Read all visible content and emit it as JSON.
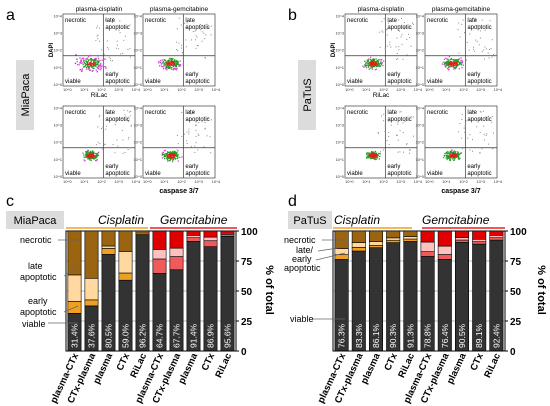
{
  "panel_letters": [
    "a",
    "b",
    "c",
    "d"
  ],
  "flow": {
    "top_headers": [
      "plasma-cisplatin",
      "plasma-gemcitabine"
    ],
    "quadrants": [
      "necrotic",
      "late apoptotic",
      "early apoptotic",
      "viable"
    ],
    "y_axis_label": "DAPI",
    "x_tick_label": "RiLac",
    "x_axis_label": "caspase 3/7",
    "row_labels_left": [
      "MiaPaca"
    ],
    "row_labels_right": [
      "PaTuS"
    ],
    "tick_labels": [
      "10^0",
      "10^1",
      "10^2",
      "10^3",
      "10^4"
    ]
  },
  "chart_data": [
    {
      "type": "bar",
      "panel": "c",
      "cell_line": "MiaPaca",
      "groups": [
        {
          "name": "Cisplatin",
          "color": "#f0a020"
        },
        {
          "name": "Gemcitabine",
          "color": "#e82020"
        }
      ],
      "categories": [
        "plasma-CTx",
        "CTx-plasma",
        "plasma",
        "CTx",
        "RiLac",
        "plasma-CTx",
        "CTx-plasma",
        "plasma",
        "CTx",
        "RiLac"
      ],
      "series": [
        {
          "name": "viable",
          "values": [
            31.4,
            37.6,
            80.5,
            59.0,
            96.2,
            64.7,
            67.7,
            91.4,
            86.9,
            95.6
          ]
        },
        {
          "name": "early apoptotic",
          "values": [
            10,
            5,
            5,
            6,
            1,
            12,
            11,
            3,
            5,
            1.5
          ]
        },
        {
          "name": "late apoptotic",
          "values": [
            22,
            18,
            2,
            18,
            1,
            8,
            7,
            2,
            3,
            1
          ]
        },
        {
          "name": "necrotic",
          "values": [
            36.6,
            39.4,
            12.5,
            17,
            1.8,
            15.3,
            14.3,
            3.6,
            5.1,
            1.9
          ]
        }
      ],
      "bar_labels": [
        "31.4%",
        "37.6%",
        "80.5%",
        "59.0%",
        "96.2%",
        "64.7%",
        "67.7%",
        "91.4%",
        "86.9%",
        "95.6%"
      ],
      "ylabel": "% of total",
      "yticks": [
        "0",
        "25",
        "50",
        "75",
        "100"
      ],
      "ylim": [
        0,
        100
      ],
      "stage_labels": [
        "necrotic",
        "late apoptotic",
        "early apoptotic",
        "viable"
      ]
    },
    {
      "type": "bar",
      "panel": "d",
      "cell_line": "PaTuS",
      "groups": [
        {
          "name": "Cisplatin",
          "color": "#f0a020"
        },
        {
          "name": "Gemcitabine",
          "color": "#e82020"
        }
      ],
      "categories": [
        "plasma-CTx",
        "CTx-plasma",
        "plasma",
        "CTx",
        "RiLac",
        "plasma-CTx",
        "CTx-plasma",
        "plasma",
        "CTx",
        "RiLac"
      ],
      "series": [
        {
          "name": "viable",
          "values": [
            76.3,
            83.3,
            86.1,
            90.3,
            91.3,
            78.8,
            76.4,
            90.5,
            89.1,
            92.4
          ]
        },
        {
          "name": "early apoptotic",
          "values": [
            4,
            3,
            2,
            2,
            2,
            4,
            4,
            2,
            2,
            2
          ]
        },
        {
          "name": "late apoptotic",
          "values": [
            5,
            4,
            3,
            2,
            2,
            8,
            7,
            2,
            2,
            2
          ]
        },
        {
          "name": "necrotic",
          "values": [
            14.7,
            9.7,
            8.9,
            5.7,
            4.7,
            9.2,
            12.6,
            5.5,
            6.9,
            3.6
          ]
        }
      ],
      "bar_labels": [
        "76.3%",
        "83.3%",
        "86.1%",
        "90.3%",
        "91.3%",
        "78.8%",
        "76.4%",
        "90.5%",
        "89.1%",
        "92.4%"
      ],
      "ylabel": "% of total",
      "yticks": [
        "0",
        "25",
        "50",
        "75",
        "100"
      ],
      "ylim": [
        0,
        100
      ],
      "stage_labels": [
        "necrotic",
        "late/",
        "early",
        "apoptotic",
        "viable"
      ]
    }
  ],
  "colors": {
    "viable": "#333333",
    "cis_early": "#f0a020",
    "cis_late": "#ffd9a0",
    "cis_necrotic": "#9a6410",
    "gem_early": "#f05a5a",
    "gem_late": "#ffc0c0",
    "gem_necrotic": "#e00000",
    "label_box": "#dcdcdc"
  }
}
